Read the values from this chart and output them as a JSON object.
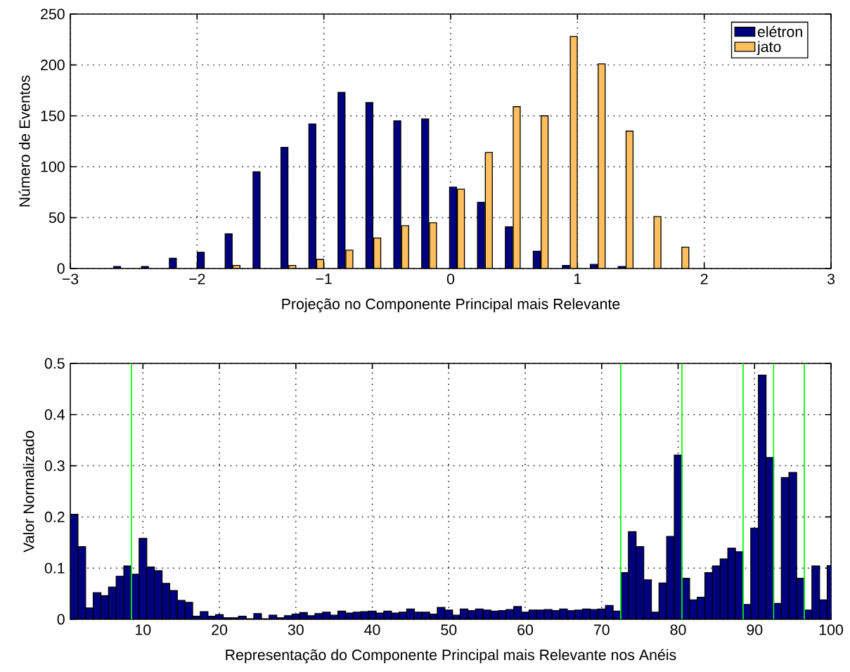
{
  "chart_data": [
    {
      "type": "bar",
      "xlabel": "Projeção no Componente Principal mais Relevante",
      "ylabel": "Número de Eventos",
      "x": [
        -2.6,
        -2.38,
        -2.16,
        -1.94,
        -1.72,
        -1.5,
        -1.28,
        -1.06,
        -0.83,
        -0.61,
        -0.39,
        -0.17,
        0.05,
        0.27,
        0.49,
        0.71,
        0.94,
        1.16,
        1.38,
        1.6,
        1.82
      ],
      "series": [
        {
          "name": "elétron",
          "color": "#000080",
          "values": [
            2,
            2,
            10,
            16,
            34,
            95,
            119,
            142,
            173,
            163,
            145,
            147,
            80,
            65,
            41,
            17,
            3,
            4,
            2,
            null,
            null
          ]
        },
        {
          "name": "jato",
          "color": "#ffbf5f",
          "values": [
            null,
            null,
            null,
            null,
            3,
            null,
            3,
            9,
            18,
            30,
            42,
            45,
            78,
            114,
            159,
            150,
            228,
            201,
            135,
            51,
            21
          ]
        }
      ],
      "xlim": [
        -3,
        3
      ],
      "ylim": [
        0,
        250
      ],
      "xticks": [
        {
          "value": -3,
          "label": "−3"
        },
        {
          "value": -2,
          "label": "−2"
        },
        {
          "value": -1,
          "label": "−1"
        },
        0,
        1,
        2,
        3
      ],
      "yticks": [
        0,
        50,
        100,
        150,
        200,
        250
      ],
      "grid": true,
      "legend": "top right"
    },
    {
      "type": "bar",
      "xlabel": "Representação do Componente Principal mais Relevante nos Anéis",
      "ylabel": "Valor Normalizado",
      "x": [
        1,
        2,
        3,
        4,
        5,
        6,
        7,
        8,
        9,
        10,
        11,
        12,
        13,
        14,
        15,
        16,
        17,
        18,
        19,
        20,
        21,
        22,
        23,
        24,
        25,
        26,
        27,
        28,
        29,
        30,
        31,
        32,
        33,
        34,
        35,
        36,
        37,
        38,
        39,
        40,
        41,
        42,
        43,
        44,
        45,
        46,
        47,
        48,
        49,
        50,
        51,
        52,
        53,
        54,
        55,
        56,
        57,
        58,
        59,
        60,
        61,
        62,
        63,
        64,
        65,
        66,
        67,
        68,
        69,
        70,
        71,
        72,
        73,
        74,
        75,
        76,
        77,
        78,
        79,
        80,
        81,
        82,
        83,
        84,
        85,
        86,
        87,
        88,
        89,
        90,
        91,
        92,
        93,
        94,
        95,
        96,
        97,
        98,
        99,
        100
      ],
      "color": "#000080",
      "values": [
        0.205,
        0.142,
        0.022,
        0.052,
        0.046,
        0.063,
        0.084,
        0.104,
        0.088,
        0.158,
        0.102,
        0.095,
        0.07,
        0.056,
        0.037,
        0.033,
        0.006,
        0.015,
        0.006,
        0.009,
        0.003,
        0.003,
        0.006,
        0.001,
        0.011,
        0.001,
        0.008,
        0.003,
        0.007,
        0.01,
        0.013,
        0.007,
        0.011,
        0.014,
        0.008,
        0.016,
        0.012,
        0.014,
        0.015,
        0.016,
        0.012,
        0.016,
        0.012,
        0.014,
        0.02,
        0.014,
        0.014,
        0.01,
        0.023,
        0.018,
        0.008,
        0.02,
        0.017,
        0.02,
        0.018,
        0.016,
        0.017,
        0.019,
        0.025,
        0.014,
        0.018,
        0.018,
        0.019,
        0.017,
        0.02,
        0.017,
        0.018,
        0.02,
        0.019,
        0.02,
        0.027,
        0.016,
        0.091,
        0.171,
        0.142,
        0.077,
        0.014,
        0.071,
        0.162,
        0.321,
        0.08,
        0.038,
        0.043,
        0.091,
        0.104,
        0.118,
        0.139,
        0.132,
        0.029,
        0.178,
        0.477,
        0.316,
        0.031,
        0.277,
        0.287,
        0.08,
        0.018,
        0.104,
        0.038,
        0.105
      ],
      "xlim": [
        0.5,
        100
      ],
      "ylim": [
        0,
        0.5
      ],
      "xticks": [
        10,
        20,
        30,
        40,
        50,
        60,
        70,
        80,
        90,
        100
      ],
      "yticks": [
        0,
        0.1,
        0.2,
        0.3,
        0.4,
        0.5
      ],
      "grid": true,
      "ref_lines": [
        {
          "axis": "x",
          "value": 8.5,
          "color": "#00ff00"
        },
        {
          "axis": "x",
          "value": 72.5,
          "color": "#00ff00"
        },
        {
          "axis": "x",
          "value": 80.5,
          "color": "#00ff00"
        },
        {
          "axis": "x",
          "value": 88.5,
          "color": "#00ff00"
        },
        {
          "axis": "x",
          "value": 92.5,
          "color": "#00ff00"
        },
        {
          "axis": "x",
          "value": 96.5,
          "color": "#00ff00"
        }
      ]
    }
  ]
}
